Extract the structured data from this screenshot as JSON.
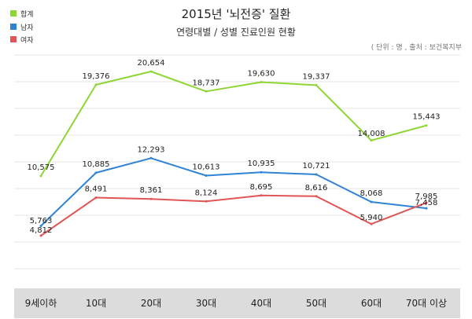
{
  "colors": {
    "total": "#8ed633",
    "male": "#2f83d4",
    "female": "#e05555",
    "grid": "#e6e6e6",
    "axis_band": "#dcdcdc"
  },
  "chart_data": {
    "type": "line",
    "title": "2015년 '뇌전증' 질환",
    "subtitle": "연령대별 / 성별 진료인원 현황",
    "source_note": "( 단위 : 명 , 출처 : 보건복지부",
    "categories": [
      "9세이하",
      "10대",
      "20대",
      "30대",
      "40대",
      "50대",
      "60대",
      "70대 이상"
    ],
    "series": [
      {
        "name": "합계",
        "color": "#8ed633",
        "values": [
          10575,
          19376,
          20654,
          18737,
          19630,
          19337,
          14008,
          15443
        ]
      },
      {
        "name": "남자",
        "color": "#2f83d4",
        "values": [
          5763,
          10885,
          12293,
          10613,
          10935,
          10721,
          8068,
          7458
        ]
      },
      {
        "name": "여자",
        "color": "#e05555",
        "values": [
          4812,
          8491,
          8361,
          8124,
          8695,
          8616,
          5940,
          7985
        ]
      }
    ],
    "legend_position": "top-left",
    "grid": true
  }
}
